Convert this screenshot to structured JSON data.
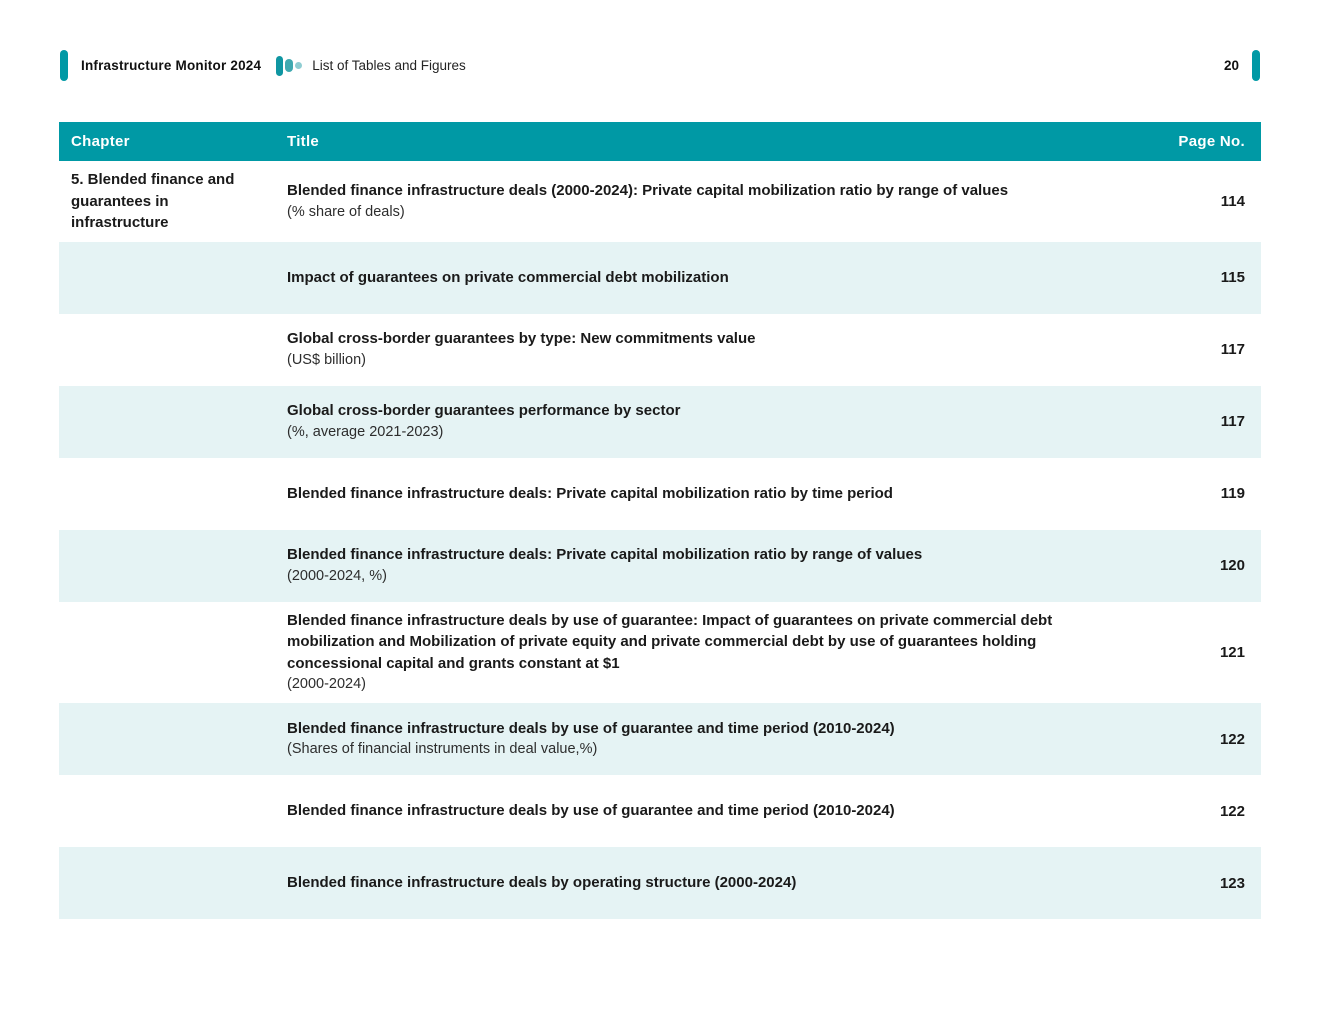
{
  "header": {
    "brand": "Infrastructure Monitor 2024",
    "section": "List of Tables and Figures",
    "page_number": "20"
  },
  "icons": {
    "brand_mark": "three-teal-pills-decreasing",
    "accent_bar": "vertical-teal-pill"
  },
  "colors": {
    "accent_teal": "#0099a5",
    "row_tint": "#e5f3f4",
    "text": "#1a1a1a"
  },
  "table": {
    "columns": [
      "Chapter",
      "Title",
      "Page No."
    ],
    "rows": [
      {
        "chapter": "5. Blended finance and guarantees in infrastructure",
        "title": "Blended finance infrastructure deals (2000-2024): Private capital mobilization ratio by range of values",
        "subtitle": "(% share of deals)",
        "page": "114"
      },
      {
        "chapter": "",
        "title": "Impact of guarantees on private commercial debt mobilization",
        "subtitle": "",
        "page": "115"
      },
      {
        "chapter": "",
        "title": "Global cross-border guarantees by type: New commitments value",
        "subtitle": "(US$ billion)",
        "page": "117"
      },
      {
        "chapter": "",
        "title": "Global cross-border guarantees performance by sector",
        "subtitle": "(%, average 2021-2023)",
        "page": "117"
      },
      {
        "chapter": "",
        "title": "Blended finance infrastructure deals: Private capital mobilization ratio by time period",
        "subtitle": "",
        "page": "119"
      },
      {
        "chapter": "",
        "title": "Blended finance infrastructure deals: Private capital mobilization ratio by range of values",
        "subtitle": "(2000-2024, %)",
        "page": "120"
      },
      {
        "chapter": "",
        "title": "Blended finance infrastructure deals by use of guarantee: Impact of guarantees on private commercial debt mobilization and Mobilization of private equity and private commercial debt by use of guarantees holding concessional capital and grants constant at $1",
        "subtitle": "(2000-2024)",
        "page": "121"
      },
      {
        "chapter": "",
        "title": "Blended finance infrastructure deals by use of guarantee and time period (2010-2024)",
        "subtitle": "(Shares of financial instruments in deal value,%)",
        "page": "122"
      },
      {
        "chapter": "",
        "title": "Blended finance infrastructure deals by use of guarantee and time period (2010-2024)",
        "subtitle": "",
        "page": "122"
      },
      {
        "chapter": "",
        "title": "Blended finance infrastructure deals by operating structure (2000-2024)",
        "subtitle": "",
        "page": "123"
      }
    ]
  }
}
